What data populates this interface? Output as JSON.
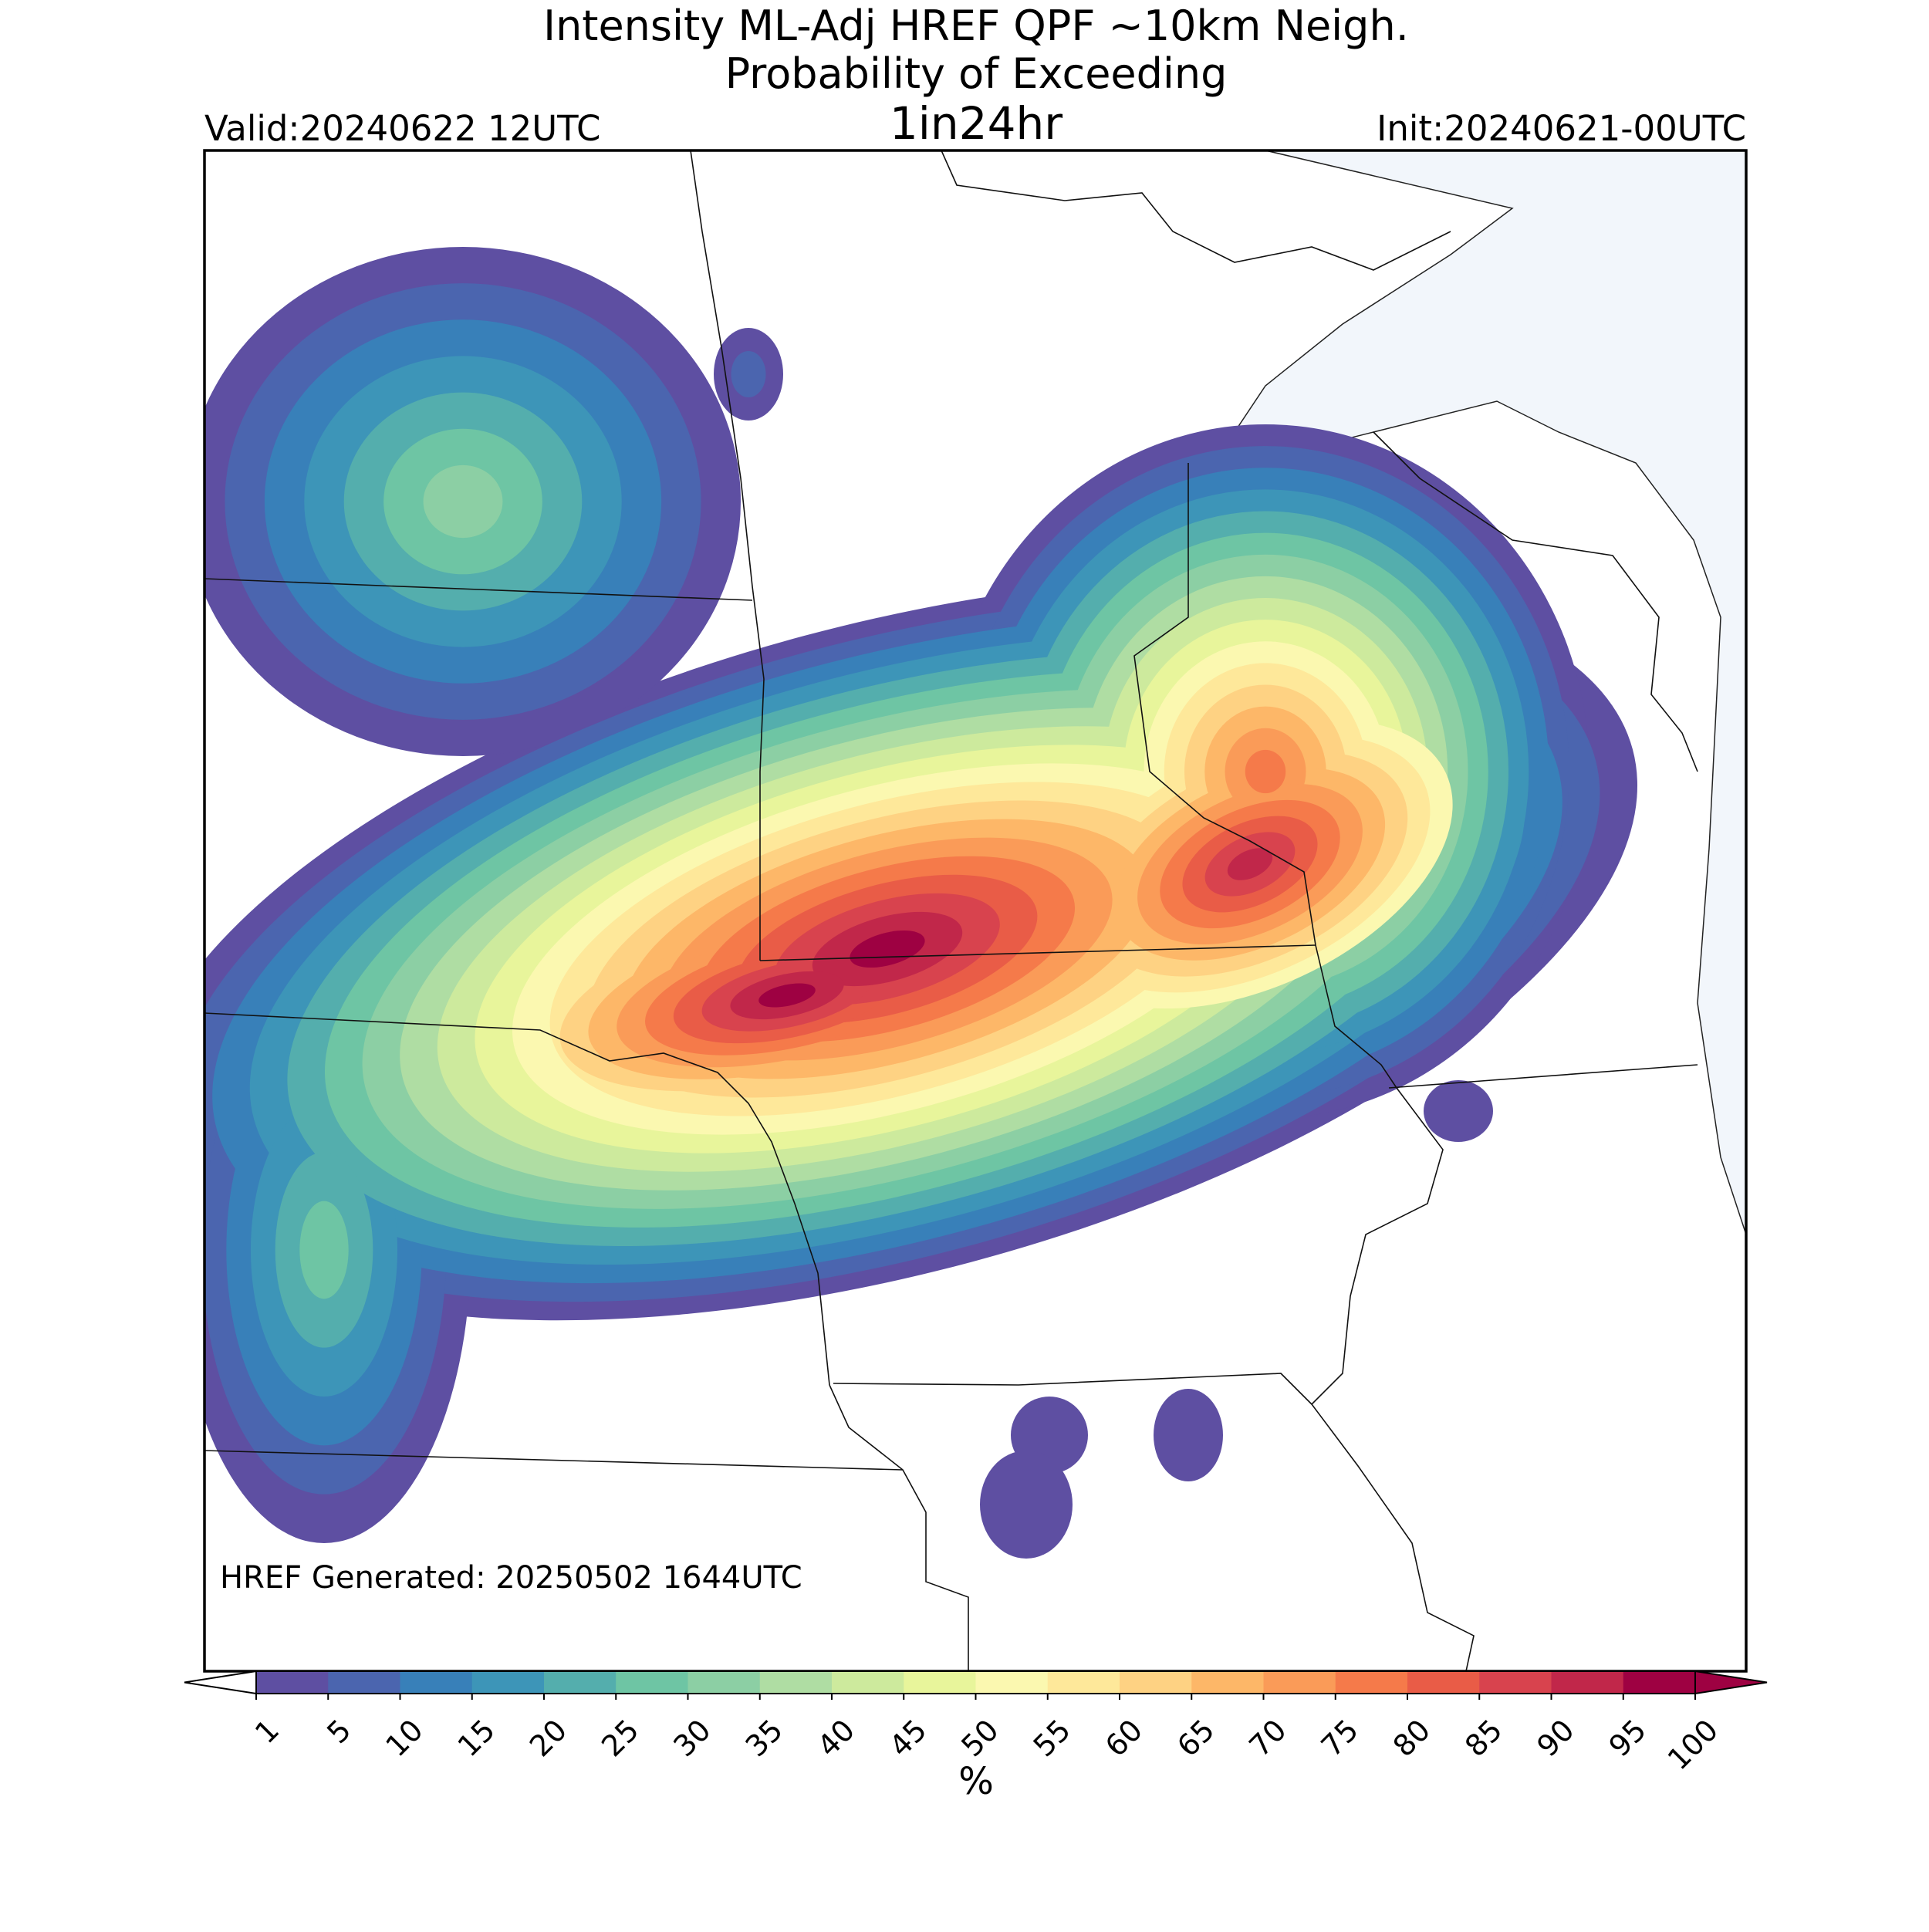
{
  "header": {
    "title": [
      "Intensity ML-Adj HREF QPF ~10km Neigh.",
      "Probability of Exceeding"
    ],
    "subtitle": "1in24hr",
    "valid": "Valid:20240622 12UTC",
    "init": "Init:20240621-00UTC"
  },
  "footer": {
    "generated": "HREF Generated: 20250502 1644UTC"
  },
  "colorbar": {
    "ticks": [
      1,
      5,
      10,
      15,
      20,
      25,
      30,
      35,
      40,
      45,
      50,
      55,
      60,
      65,
      70,
      75,
      80,
      85,
      90,
      95,
      100
    ],
    "colors": [
      "#5e4fa2",
      "#4b65af",
      "#3880b9",
      "#3d95b8",
      "#54aead",
      "#6ec5a4",
      "#8ccfa4",
      "#afdda3",
      "#cdea9d",
      "#e8f59b",
      "#fbf8b0",
      "#fee89a",
      "#fed283",
      "#fdb768",
      "#fa9b58",
      "#f57a4a",
      "#e95c47",
      "#d8434e",
      "#c1274a",
      "#9e0142"
    ],
    "under_color": "#ffffff",
    "over_color": "#9e0142",
    "label": "%"
  }
}
